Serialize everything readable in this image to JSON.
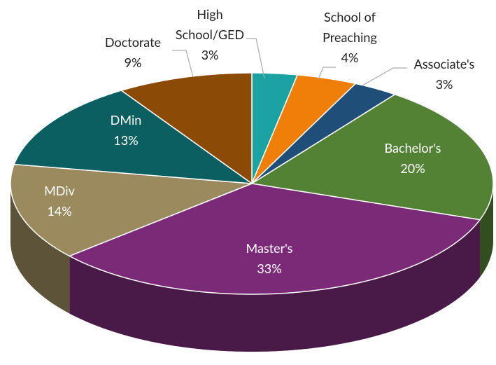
{
  "chart_data": {
    "type": "pie",
    "categories": [
      "High School/GED",
      "School of Preaching",
      "Associate's",
      "Bachelor's",
      "Master's",
      "MDiv",
      "DMin",
      "Doctorate"
    ],
    "values": [
      3,
      4,
      3,
      20,
      33,
      14,
      13,
      9
    ],
    "value_labels": [
      "3%",
      "4%",
      "3%",
      "20%",
      "33%",
      "14%",
      "13%",
      "9%"
    ],
    "colors": [
      "#1ba3a3",
      "#f07f09",
      "#1f4e79",
      "#548235",
      "#7b2a78",
      "#9a8a5e",
      "#0c5f61",
      "#8c4a07"
    ]
  }
}
